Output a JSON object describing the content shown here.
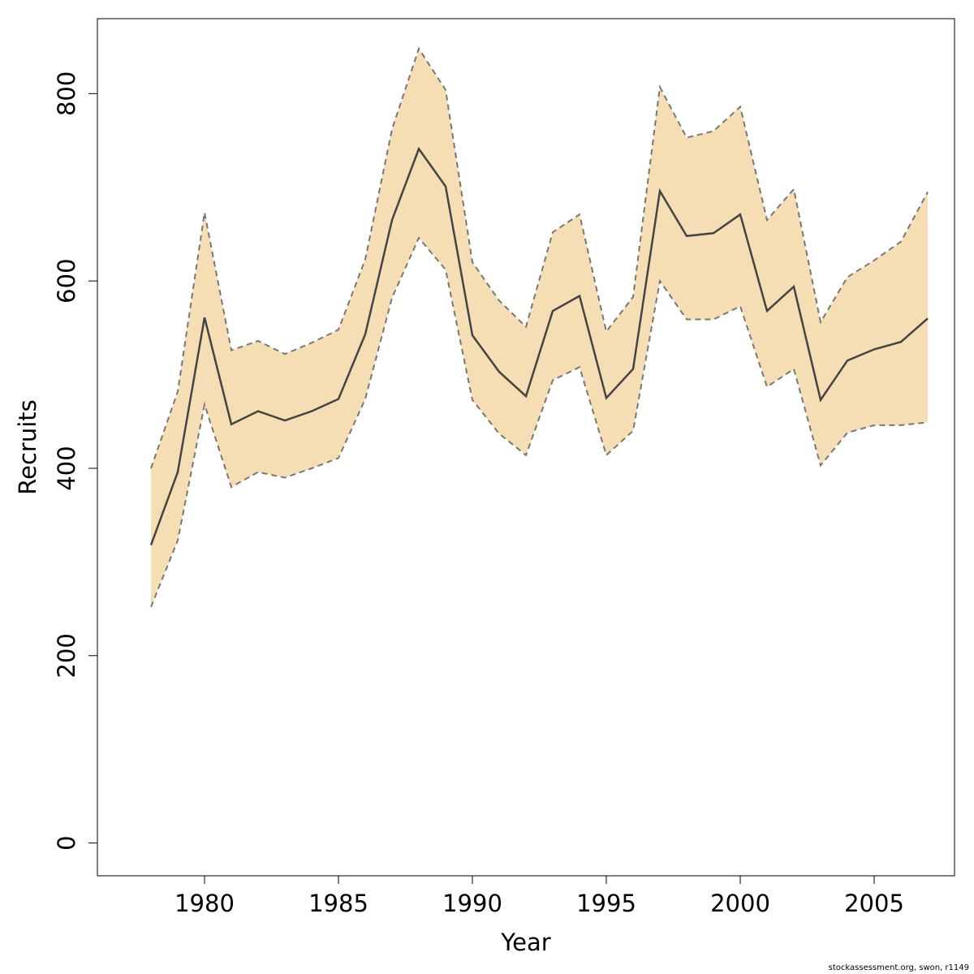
{
  "chart_data": {
    "type": "area",
    "title": "",
    "xlabel": "Year",
    "ylabel": "Recruits",
    "xlim": [
      1976,
      2008
    ],
    "ylim": [
      -35,
      880
    ],
    "x_ticks": [
      1980,
      1985,
      1990,
      1995,
      2000,
      2005
    ],
    "y_ticks": [
      0,
      200,
      400,
      600,
      800
    ],
    "grid": false,
    "colors": {
      "band_fill": "#F5DEB3",
      "band_edge": "#777777",
      "line": "#444444"
    },
    "x": [
      1978,
      1979,
      1980,
      1981,
      1982,
      1983,
      1984,
      1985,
      1986,
      1987,
      1988,
      1989,
      1990,
      1991,
      1992,
      1993,
      1994,
      1995,
      1996,
      1997,
      1998,
      1999,
      2000,
      2001,
      2002,
      2003,
      2004,
      2005,
      2006,
      2007
    ],
    "series": [
      {
        "values": [
          318,
          396,
          561,
          447,
          461,
          451,
          461,
          474,
          543,
          665,
          741,
          701,
          542,
          503,
          477,
          568,
          584,
          475,
          506,
          696,
          648,
          651,
          671,
          568,
          594,
          473,
          515,
          527,
          535,
          560
        ]
      },
      {
        "role": "upper",
        "values": [
          400,
          482,
          673,
          526,
          536,
          522,
          534,
          548,
          623,
          762,
          848,
          804,
          620,
          579,
          551,
          652,
          671,
          546,
          583,
          807,
          753,
          760,
          786,
          665,
          698,
          556,
          604,
          622,
          642,
          695
        ]
      },
      {
        "role": "lower",
        "values": [
          252,
          323,
          468,
          380,
          396,
          390,
          400,
          411,
          474,
          582,
          646,
          612,
          473,
          437,
          414,
          494,
          508,
          414,
          440,
          600,
          559,
          559,
          573,
          487,
          506,
          403,
          438,
          446,
          446,
          449
        ]
      }
    ]
  },
  "footer": {
    "text": "stockassessment.org, swon, r1149"
  }
}
